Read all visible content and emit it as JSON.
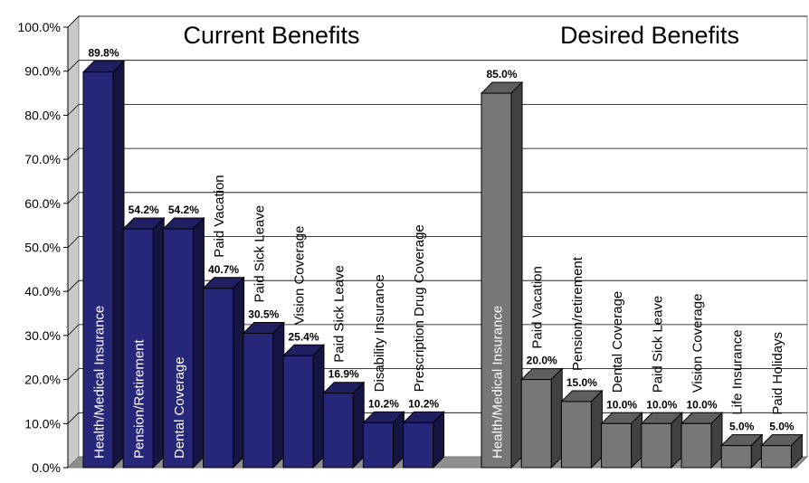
{
  "chart_data": {
    "type": "bar",
    "ylim": [
      0,
      100
    ],
    "ytick_labels": [
      "0.0%",
      "10.0%",
      "20.0%",
      "30.0%",
      "40.0%",
      "50.0%",
      "60.0%",
      "70.0%",
      "80.0%",
      "90.0%",
      "100.0%"
    ],
    "grid": true,
    "panels": [
      {
        "title": "Current Benefits",
        "color": "#27277a",
        "bars": [
          {
            "label": "Health/Medical Insurance",
            "value": 89.8,
            "value_label": "89.8%"
          },
          {
            "label": "Pension/Retirement",
            "value": 54.2,
            "value_label": "54.2%"
          },
          {
            "label": "Dental Coverage",
            "value": 54.2,
            "value_label": "54.2%"
          },
          {
            "label": "Paid Vacation",
            "value": 40.7,
            "value_label": "40.7%"
          },
          {
            "label": "Paid Sick Leave",
            "value": 30.5,
            "value_label": "30.5%"
          },
          {
            "label": "Vision Coverage",
            "value": 25.4,
            "value_label": "25.4%"
          },
          {
            "label": "Paid Sick Leave",
            "value": 16.9,
            "value_label": "16.9%"
          },
          {
            "label": "Disability Insurance",
            "value": 10.2,
            "value_label": "10.2%"
          },
          {
            "label": "Prescription Drug Coverage",
            "value": 10.2,
            "value_label": "10.2%"
          }
        ]
      },
      {
        "title": "Desired Benefits",
        "color": "#777777",
        "bars": [
          {
            "label": "Health/Medical Insurance",
            "value": 85.0,
            "value_label": "85.0%"
          },
          {
            "label": "Paid Vacation",
            "value": 20.0,
            "value_label": "20.0%"
          },
          {
            "label": "Pension/retirement",
            "value": 15.0,
            "value_label": "15.0%"
          },
          {
            "label": "Dental Coverage",
            "value": 10.0,
            "value_label": "10.0%"
          },
          {
            "label": "Paid Sick Leave",
            "value": 10.0,
            "value_label": "10.0%"
          },
          {
            "label": "Vision Coverage",
            "value": 10.0,
            "value_label": "10.0%"
          },
          {
            "label": "Life Insurance",
            "value": 5.0,
            "value_label": "5.0%"
          },
          {
            "label": "Paid Holidays",
            "value": 5.0,
            "value_label": "5.0%"
          }
        ]
      }
    ]
  }
}
